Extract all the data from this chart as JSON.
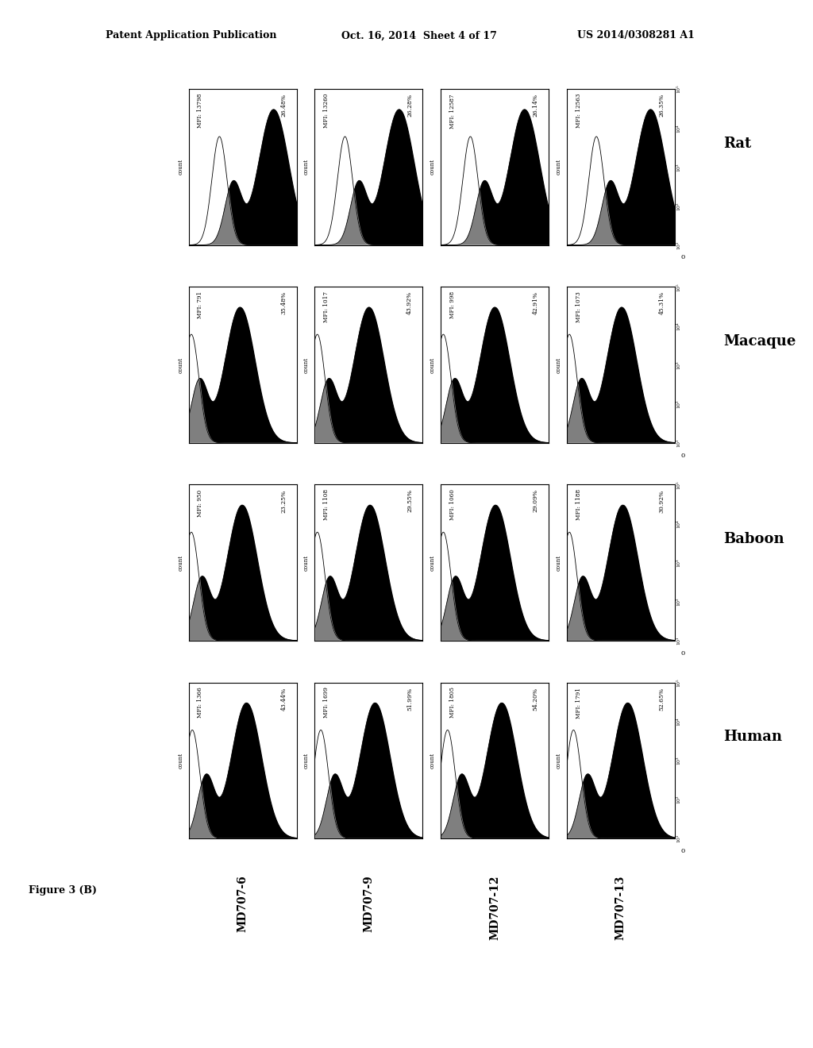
{
  "header_left": "Patent Application Publication",
  "header_mid": "Oct. 16, 2014  Sheet 4 of 17",
  "header_right": "US 2014/0308281 A1",
  "figure_label": "Figure 3 (B)",
  "species_rows": [
    "Rat",
    "Macaque",
    "Baboon",
    "Human"
  ],
  "ab_cols": [
    "MD707-6",
    "MD707-9",
    "MD707-12",
    "MD707-13"
  ],
  "panels": {
    "Rat": {
      "MD707-6": {
        "mfi": "MFI: 13798",
        "pct": "26.48%",
        "mfi_val": 13798,
        "pct_val": 26.48
      },
      "MD707-9": {
        "mfi": "MFI: 13260",
        "pct": "26.28%",
        "mfi_val": 13260,
        "pct_val": 26.28
      },
      "MD707-12": {
        "mfi": "MFI: 12587",
        "pct": "26.14%",
        "mfi_val": 12587,
        "pct_val": 26.14
      },
      "MD707-13": {
        "mfi": "MFI: 12563",
        "pct": "26.35%",
        "mfi_val": 12563,
        "pct_val": 26.35
      }
    },
    "Macaque": {
      "MD707-6": {
        "mfi": "MFI: 791",
        "pct": "35.48%",
        "mfi_val": 791,
        "pct_val": 35.48
      },
      "MD707-9": {
        "mfi": "MFI: 1017",
        "pct": "43.92%",
        "mfi_val": 1017,
        "pct_val": 43.92
      },
      "MD707-12": {
        "mfi": "MFI: 998",
        "pct": "42.91%",
        "mfi_val": 998,
        "pct_val": 42.91
      },
      "MD707-13": {
        "mfi": "MFI: 1073",
        "pct": "45.31%",
        "mfi_val": 1073,
        "pct_val": 45.31
      }
    },
    "Baboon": {
      "MD707-6": {
        "mfi": "MFI: 950",
        "pct": "23.25%",
        "mfi_val": 950,
        "pct_val": 23.25
      },
      "MD707-9": {
        "mfi": "MFI: 1108",
        "pct": "29.55%",
        "mfi_val": 1108,
        "pct_val": 29.55
      },
      "MD707-12": {
        "mfi": "MFI: 1060",
        "pct": "29.09%",
        "mfi_val": 1060,
        "pct_val": 29.09
      },
      "MD707-13": {
        "mfi": "MFI: 1188",
        "pct": "30.92%",
        "mfi_val": 1188,
        "pct_val": 30.92
      }
    },
    "Human": {
      "MD707-6": {
        "mfi": "MFI: 1366",
        "pct": "43.44%",
        "mfi_val": 1366,
        "pct_val": 43.44
      },
      "MD707-9": {
        "mfi": "MFI: 1699",
        "pct": "51.99%",
        "mfi_val": 1699,
        "pct_val": 51.99
      },
      "MD707-12": {
        "mfi": "MFI: 1805",
        "pct": "54.20%",
        "mfi_val": 1805,
        "pct_val": 54.2
      },
      "MD707-13": {
        "mfi": "MFI: 1791",
        "pct": "52.65%",
        "mfi_val": 1791,
        "pct_val": 52.65
      }
    }
  },
  "bg_color": "#ffffff"
}
